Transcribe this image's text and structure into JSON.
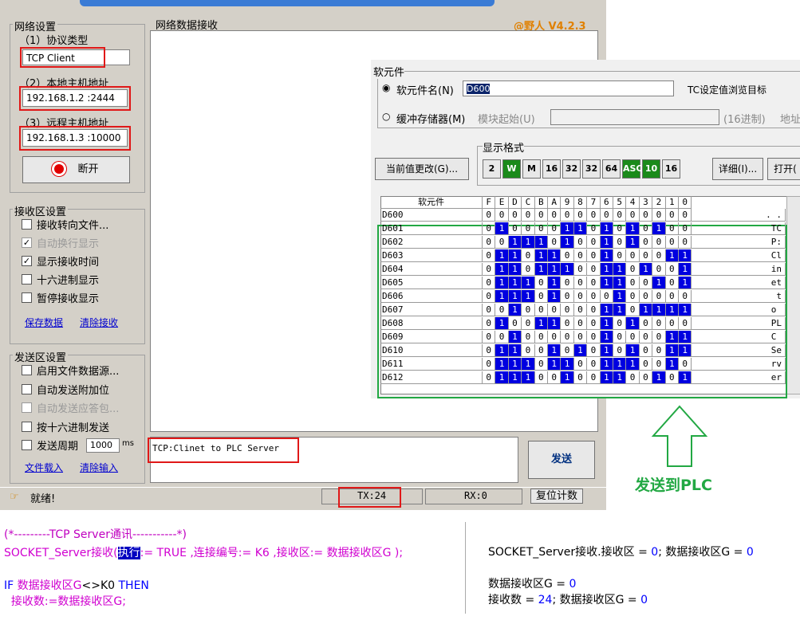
{
  "network_settings": {
    "title": "网络设置",
    "protocol_label": "（1）协议类型",
    "protocol": "TCP Client",
    "local_label": "（2）本地主机地址",
    "local_address": "192.168.1.2 :2444",
    "remote_label": "（3）远程主机地址",
    "remote_address": "192.168.1.3 :10000",
    "connect_button": "断开"
  },
  "receive_settings": {
    "title": "接收区设置",
    "options": [
      {
        "label": "接收转向文件...",
        "checked": false,
        "disabled": false
      },
      {
        "label": "自动换行显示",
        "checked": true,
        "disabled": true
      },
      {
        "label": "显示接收时间",
        "checked": true,
        "disabled": false
      },
      {
        "label": "十六进制显示",
        "checked": false,
        "disabled": false
      },
      {
        "label": "暂停接收显示",
        "checked": false,
        "disabled": false
      }
    ],
    "links": [
      "保存数据",
      "清除接收"
    ]
  },
  "send_settings": {
    "title": "发送区设置",
    "options": [
      {
        "label": "启用文件数据源...",
        "checked": false,
        "disabled": false
      },
      {
        "label": "自动发送附加位",
        "checked": false,
        "disabled": false
      },
      {
        "label": "自动发送应答包...",
        "checked": false,
        "disabled": true
      },
      {
        "label": "按十六进制发送",
        "checked": false,
        "disabled": false
      },
      {
        "label": "发送周期",
        "checked": false,
        "disabled": false
      }
    ],
    "period": "1000",
    "period_unit": "ms",
    "links": [
      "文件载入",
      "清除输入"
    ]
  },
  "receive_area": {
    "title": "网络数据接收",
    "version": "@野人 V4.2.3"
  },
  "send_area": {
    "text": "TCP:Clinet to PLC Server",
    "send_button": "发送"
  },
  "status_bar": {
    "status": "就绪!",
    "tx": "TX:24",
    "rx": "RX:0",
    "reset_button": "复位计数"
  },
  "device_window": {
    "group_title": "软元件",
    "device_name_label": "软元件名(N)",
    "device_name": "D600",
    "tc_target_label": "TC设定值浏览目标",
    "buffer_label": "缓冲存储器(M)",
    "module_start_label": "模块起始(U)",
    "hex_label": "(16进制)",
    "address_label": "地址",
    "format_title": "显示格式",
    "change_button": "当前值更改(G)...",
    "format_buttons": [
      "2",
      "W",
      "M",
      "16",
      "32",
      "32",
      "64",
      "ASC",
      "10",
      "16"
    ],
    "detail_button": "详细(I)...",
    "open_button": "打开(",
    "table_header": "软元件",
    "bit_headers": [
      "F",
      "E",
      "D",
      "C",
      "B",
      "A",
      "9",
      "8",
      "7",
      "6",
      "5",
      "4",
      "3",
      "2",
      "1",
      "0"
    ],
    "rows": [
      {
        "name": "D600",
        "bits": [
          0,
          0,
          0,
          0,
          0,
          0,
          0,
          0,
          0,
          0,
          0,
          0,
          0,
          0,
          0,
          0
        ],
        "ascii": ". ."
      },
      {
        "name": "D601",
        "bits": [
          0,
          1,
          0,
          0,
          0,
          0,
          1,
          1,
          0,
          1,
          0,
          1,
          0,
          1,
          0,
          0
        ],
        "ascii": "TC"
      },
      {
        "name": "D602",
        "bits": [
          0,
          0,
          1,
          1,
          1,
          0,
          1,
          0,
          0,
          1,
          0,
          1,
          0,
          0,
          0,
          0
        ],
        "ascii": "P:"
      },
      {
        "name": "D603",
        "bits": [
          0,
          1,
          1,
          0,
          1,
          1,
          0,
          0,
          0,
          1,
          0,
          0,
          0,
          0,
          1,
          1
        ],
        "ascii": "Cl"
      },
      {
        "name": "D604",
        "bits": [
          0,
          1,
          1,
          0,
          1,
          1,
          1,
          0,
          0,
          1,
          1,
          0,
          1,
          0,
          0,
          1
        ],
        "ascii": "in"
      },
      {
        "name": "D605",
        "bits": [
          0,
          1,
          1,
          1,
          0,
          1,
          0,
          0,
          0,
          1,
          1,
          0,
          0,
          1,
          0,
          1
        ],
        "ascii": "et"
      },
      {
        "name": "D606",
        "bits": [
          0,
          1,
          1,
          1,
          0,
          1,
          0,
          0,
          0,
          0,
          1,
          0,
          0,
          0,
          0,
          0
        ],
        "ascii": " t"
      },
      {
        "name": "D607",
        "bits": [
          0,
          0,
          1,
          0,
          0,
          0,
          0,
          0,
          0,
          1,
          1,
          0,
          1,
          1,
          1,
          1
        ],
        "ascii": "o "
      },
      {
        "name": "D608",
        "bits": [
          0,
          1,
          0,
          0,
          1,
          1,
          0,
          0,
          0,
          1,
          0,
          1,
          0,
          0,
          0,
          0
        ],
        "ascii": "PL"
      },
      {
        "name": "D609",
        "bits": [
          0,
          0,
          1,
          0,
          0,
          0,
          0,
          0,
          0,
          1,
          0,
          0,
          0,
          0,
          1,
          1
        ],
        "ascii": "C "
      },
      {
        "name": "D610",
        "bits": [
          0,
          1,
          1,
          0,
          0,
          1,
          0,
          1,
          0,
          1,
          0,
          1,
          0,
          0,
          1,
          1
        ],
        "ascii": "Se"
      },
      {
        "name": "D611",
        "bits": [
          0,
          1,
          1,
          1,
          0,
          1,
          1,
          0,
          0,
          1,
          1,
          1,
          0,
          0,
          1,
          0
        ],
        "ascii": "rv"
      },
      {
        "name": "D612",
        "bits": [
          0,
          1,
          1,
          1,
          0,
          0,
          1,
          0,
          0,
          1,
          1,
          0,
          0,
          1,
          0,
          1
        ],
        "ascii": "er"
      }
    ]
  },
  "annotation": "发送到PLC",
  "code": {
    "lines": [
      [
        {
          "text": "(*---------TCP Server通讯-----------*)",
          "color": "#c000c0"
        }
      ],
      [
        {
          "text": "SOCKET_Server接收(",
          "color": "#d000d0"
        },
        {
          "text": "执行",
          "color": "#ffffff",
          "highlight": true
        },
        {
          "text": ":= TRUE ,连接编号:= K6 ,接收区:= 数据接收区G );",
          "color": "#d000d0"
        }
      ],
      [
        {
          "text": "IF ",
          "color": "#0000ff"
        },
        {
          "text": "数据接收区G",
          "color": "#d000d0"
        },
        {
          "text": "<>K0 ",
          "color": "#000000"
        },
        {
          "text": "THEN",
          "color": "#0000ff"
        }
      ],
      [
        {
          "text": "  接收数:=数据接收区G;",
          "color": "#d000d0"
        }
      ]
    ]
  },
  "monitor": {
    "lines": [
      [
        {
          "text": "SOCKET_Server接收.接收区 = ",
          "color": "#000000"
        },
        {
          "text": "0",
          "color": "#0000ff"
        },
        {
          "text": "; 数据接收区G = ",
          "color": "#000000"
        },
        {
          "text": "0",
          "color": "#0000ff"
        }
      ],
      [
        {
          "text": "数据接收区G = ",
          "color": "#000000"
        },
        {
          "text": "0",
          "color": "#0000ff"
        }
      ],
      [
        {
          "text": "接收数 = ",
          "color": "#000000"
        },
        {
          "text": "24",
          "color": "#0000ff"
        },
        {
          "text": "; 数据接收区G = ",
          "color": "#000000"
        },
        {
          "text": "0",
          "color": "#0000ff"
        }
      ]
    ]
  }
}
